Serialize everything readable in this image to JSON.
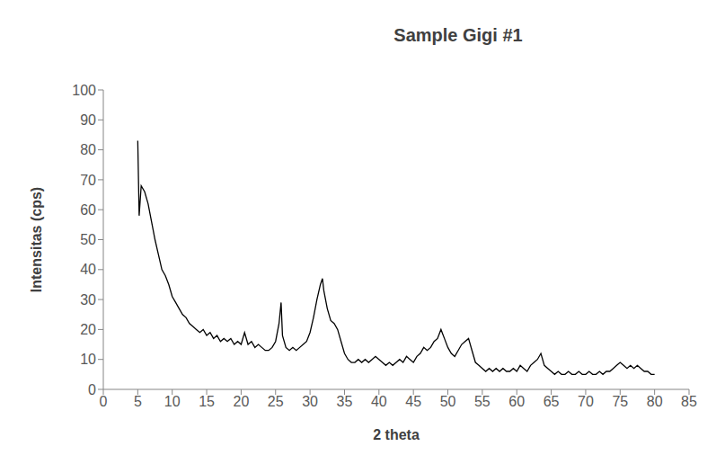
{
  "chart_data": {
    "type": "line",
    "title": "Sample Gigi #1",
    "x_label": "2 theta",
    "y_label": "Intensitas (cps)",
    "x": [
      5,
      5.2,
      5.5,
      6,
      6.5,
      7,
      7.5,
      8,
      8.5,
      9,
      9.5,
      10,
      10.5,
      11,
      11.5,
      12,
      12.5,
      13,
      13.5,
      14,
      14.5,
      15,
      15.5,
      16,
      16.5,
      17,
      17.5,
      18,
      18.5,
      19,
      19.5,
      20,
      20.5,
      21,
      21.5,
      22,
      22.5,
      23,
      23.5,
      24,
      24.5,
      25,
      25.5,
      25.8,
      26,
      26.5,
      27,
      27.5,
      28,
      28.5,
      29,
      29.5,
      30,
      30.5,
      31,
      31.5,
      31.8,
      32,
      32.5,
      33,
      33.5,
      34,
      34.5,
      35,
      35.5,
      36,
      36.5,
      37,
      37.5,
      38,
      38.5,
      39,
      39.5,
      40,
      40.5,
      41,
      41.5,
      42,
      42.5,
      43,
      43.5,
      44,
      44.5,
      45,
      45.5,
      46,
      46.5,
      47,
      47.5,
      48,
      48.5,
      49,
      49.5,
      50,
      50.5,
      51,
      51.5,
      52,
      52.5,
      53,
      53.5,
      54,
      54.5,
      55,
      55.5,
      56,
      56.5,
      57,
      57.5,
      58,
      58.5,
      59,
      59.5,
      60,
      60.5,
      61,
      61.5,
      62,
      62.5,
      63,
      63.5,
      64,
      64.5,
      65,
      65.5,
      66,
      66.5,
      67,
      67.5,
      68,
      68.5,
      69,
      69.5,
      70,
      70.5,
      71,
      71.5,
      72,
      72.5,
      73,
      73.5,
      74,
      74.5,
      75,
      75.5,
      76,
      76.5,
      77,
      77.5,
      78,
      78.5,
      79,
      79.5,
      80
    ],
    "series": [
      {
        "name": "Sample Gigi #1",
        "color": "#000000",
        "values": [
          83,
          58,
          68,
          66,
          62,
          56,
          50,
          45,
          40,
          38,
          35,
          31,
          29,
          27,
          25,
          24,
          22,
          21,
          20,
          19,
          20,
          18,
          19,
          17,
          18,
          16,
          17,
          16,
          17,
          15,
          16,
          15,
          19,
          15,
          16,
          14,
          15,
          14,
          13,
          13,
          14,
          16,
          22,
          29,
          18,
          14,
          13,
          14,
          13,
          14,
          15,
          16,
          19,
          24,
          30,
          35,
          37,
          33,
          27,
          23,
          22,
          20,
          16,
          12,
          10,
          9,
          9,
          10,
          9,
          10,
          9,
          10,
          11,
          10,
          9,
          8,
          9,
          8,
          9,
          10,
          9,
          11,
          10,
          9,
          11,
          12,
          14,
          13,
          14,
          16,
          17,
          20,
          17,
          14,
          12,
          11,
          13,
          15,
          16,
          17,
          13,
          9,
          8,
          7,
          6,
          7,
          6,
          7,
          6,
          7,
          6,
          6,
          7,
          6,
          8,
          7,
          6,
          8,
          9,
          10,
          12,
          8,
          7,
          6,
          5,
          6,
          5,
          5,
          6,
          5,
          5,
          6,
          5,
          5,
          6,
          5,
          5,
          6,
          5,
          6,
          6,
          7,
          8,
          9,
          8,
          7,
          8,
          7,
          8,
          7,
          6,
          6,
          5,
          5
        ]
      }
    ],
    "xlim": [
      0,
      85
    ],
    "xticks": [
      0,
      5,
      10,
      15,
      20,
      25,
      30,
      35,
      40,
      45,
      50,
      55,
      60,
      65,
      70,
      75,
      80,
      85
    ],
    "ylim": [
      0,
      100
    ],
    "yticks": [
      0,
      10,
      20,
      30,
      40,
      50,
      60,
      70,
      80,
      90,
      100
    ],
    "grid": false
  }
}
